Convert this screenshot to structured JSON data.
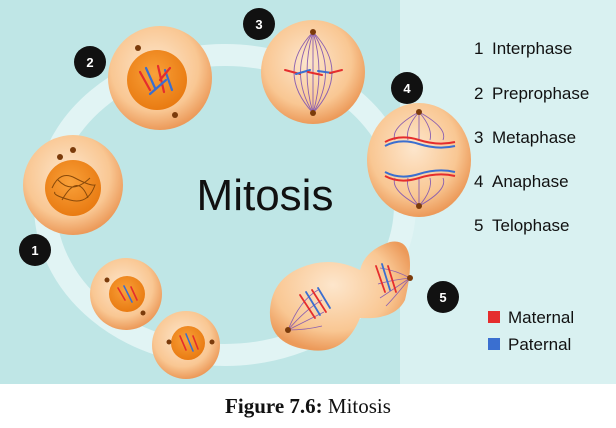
{
  "diagram": {
    "title": "Mitosis",
    "stage_numbers": [
      "1",
      "2",
      "3",
      "4",
      "5"
    ],
    "stages": [
      {
        "number": "1",
        "name": "Interphase"
      },
      {
        "number": "2",
        "name": "Preprophase"
      },
      {
        "number": "3",
        "name": "Metaphase"
      },
      {
        "number": "4",
        "name": "Anaphase"
      },
      {
        "number": "5",
        "name": "Telophase"
      }
    ],
    "legend": [
      {
        "label": "Maternal",
        "color": "#e52d2d"
      },
      {
        "label": "Paternal",
        "color": "#3a6fd0"
      }
    ]
  },
  "caption": {
    "label": "Figure 7.6:",
    "text": " Mitosis"
  },
  "colors": {
    "background": "#bfe6e6",
    "panel_right": "#d9f1f1",
    "cell_outer": "#f7c08e",
    "nucleus": "#f28c24",
    "marker": "#111111"
  }
}
